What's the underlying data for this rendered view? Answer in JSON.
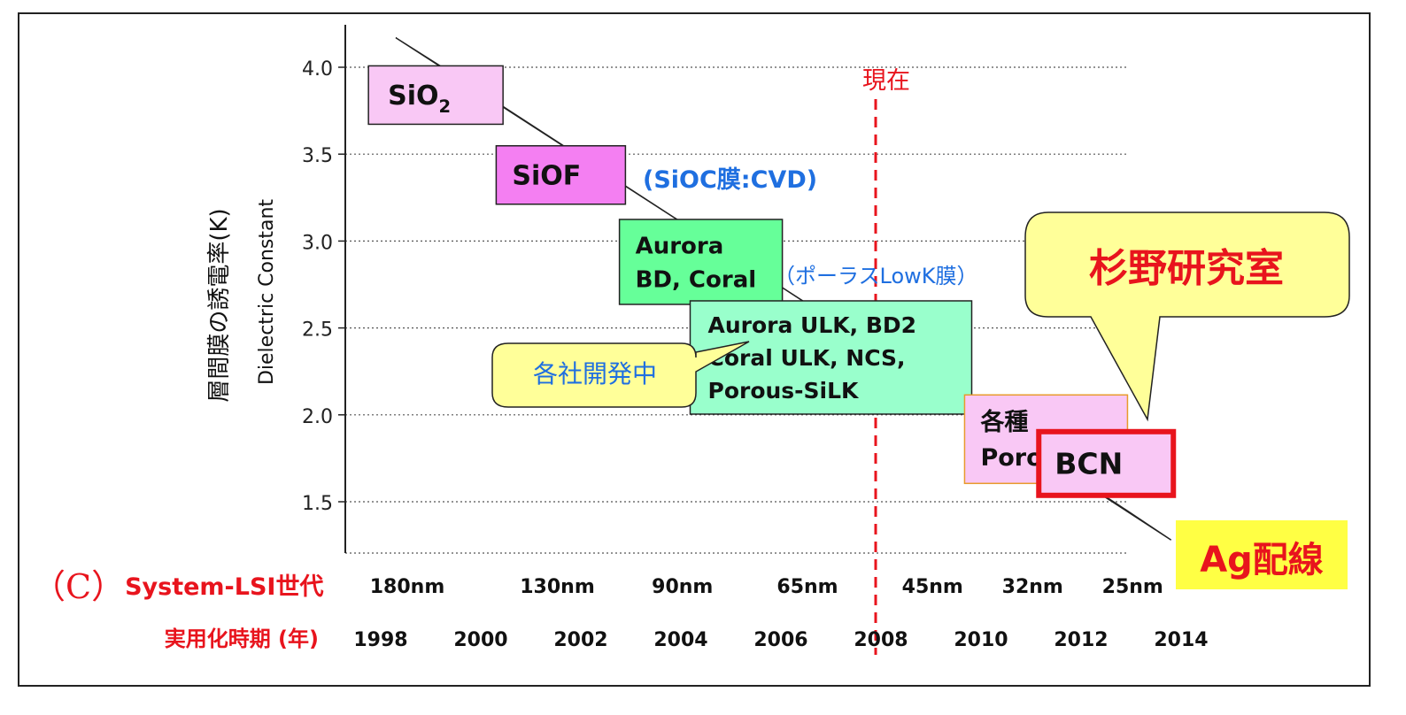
{
  "chart_data": {
    "type": "line",
    "ylabel_jp": "層間膜の誘電率(K)",
    "ylabel_en": "Dielectric Constant",
    "ylim": [
      1.2,
      4.2
    ],
    "y_ticks": [
      "4.0",
      "3.5",
      "3.0",
      "2.5",
      "2.0",
      "1.5"
    ],
    "y_tick_values": [
      4.0,
      3.5,
      3.0,
      2.5,
      2.0,
      1.5
    ],
    "grid": "horizontal-dotted",
    "generation_row_label": "System-LSI世代",
    "generation_row_prefix": "（C）",
    "generations": [
      "180nm",
      "130nm",
      "90nm",
      "65nm",
      "45nm",
      "32nm",
      "25nm"
    ],
    "generation_years": [
      1998,
      2001,
      2003.5,
      2006,
      2008.5,
      2010.5,
      2012.5
    ],
    "year_row_label": "実用化時期 (年)",
    "years": [
      "1998",
      "2000",
      "2002",
      "2004",
      "2006",
      "2008",
      "2010",
      "2012",
      "2014"
    ],
    "year_values": [
      1998,
      2000,
      2002,
      2004,
      2006,
      2008,
      2010,
      2012,
      2014
    ],
    "xlim": [
      1996.7,
      2014.6
    ],
    "now_year": 2008,
    "now_label": "現在",
    "trend_band": {
      "start": [
        1998.3,
        4.17
      ],
      "end": [
        2013.8,
        1.28
      ]
    },
    "materials": [
      {
        "label": "SiO",
        "sub": "2",
        "year": 1999.1,
        "k": 3.84,
        "color": "#f9c8f5"
      },
      {
        "label": "SiOF",
        "year": 2001.6,
        "k": 3.38,
        "color": "#f47ff2"
      },
      {
        "label": "Aurora\nBD, Coral",
        "year": 2004.4,
        "k": 2.88,
        "color": "#66ff99"
      },
      {
        "label": "Aurora ULK, BD2\nCoral ULK, NCS,\nPorous-SiLK",
        "year": 2007.0,
        "k": 2.33,
        "color": "#99ffcc"
      },
      {
        "label": "各種\nPorous",
        "year": 2011.3,
        "k": 1.86,
        "color": "#f9c8f5"
      },
      {
        "label": "BCN",
        "year": 2012.5,
        "k": 1.72,
        "color": "#f9c8f5"
      }
    ],
    "annotations": [
      {
        "text": "(SiOC膜:CVD)",
        "color": "#1f6fe0"
      },
      {
        "text": "（ポーラスLowK膜）",
        "color": "#1f6fe0"
      },
      {
        "text": "各社開発中",
        "color": "#1f6fe0",
        "callout": true
      },
      {
        "text": "杉野研究室",
        "color": "#e8141d",
        "callout": true
      },
      {
        "text": "Ag配線",
        "color": "#e8141d"
      }
    ]
  }
}
